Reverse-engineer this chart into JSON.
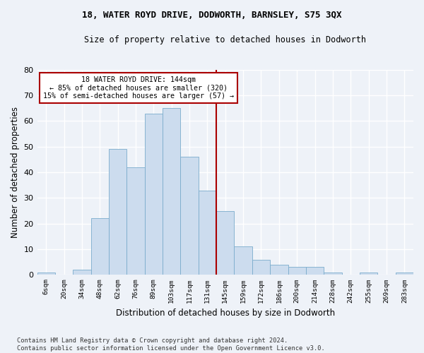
{
  "title1": "18, WATER ROYD DRIVE, DODWORTH, BARNSLEY, S75 3QX",
  "title2": "Size of property relative to detached houses in Dodworth",
  "xlabel": "Distribution of detached houses by size in Dodworth",
  "ylabel": "Number of detached properties",
  "categories": [
    "6sqm",
    "20sqm",
    "34sqm",
    "48sqm",
    "62sqm",
    "76sqm",
    "89sqm",
    "103sqm",
    "117sqm",
    "131sqm",
    "145sqm",
    "159sqm",
    "172sqm",
    "186sqm",
    "200sqm",
    "214sqm",
    "228sqm",
    "242sqm",
    "255sqm",
    "269sqm",
    "283sqm"
  ],
  "values": [
    1,
    0,
    2,
    22,
    49,
    42,
    63,
    65,
    46,
    33,
    25,
    11,
    6,
    4,
    3,
    3,
    1,
    0,
    1,
    0,
    1
  ],
  "bar_color": "#ccdcee",
  "bar_edge_color": "#7aaccc",
  "vline_color": "#aa0000",
  "annotation_line1": "18 WATER ROYD DRIVE: 144sqm",
  "annotation_line2": "← 85% of detached houses are smaller (320)",
  "annotation_line3": "15% of semi-detached houses are larger (57) →",
  "annotation_box_color": "#ffffff",
  "annotation_box_edge": "#aa0000",
  "ylim": [
    0,
    80
  ],
  "yticks": [
    0,
    10,
    20,
    30,
    40,
    50,
    60,
    70,
    80
  ],
  "footer": "Contains HM Land Registry data © Crown copyright and database right 2024.\nContains public sector information licensed under the Open Government Licence v3.0.",
  "bg_color": "#eef2f8",
  "grid_color": "#ffffff",
  "tick_color": "#333333",
  "vline_index": 10
}
